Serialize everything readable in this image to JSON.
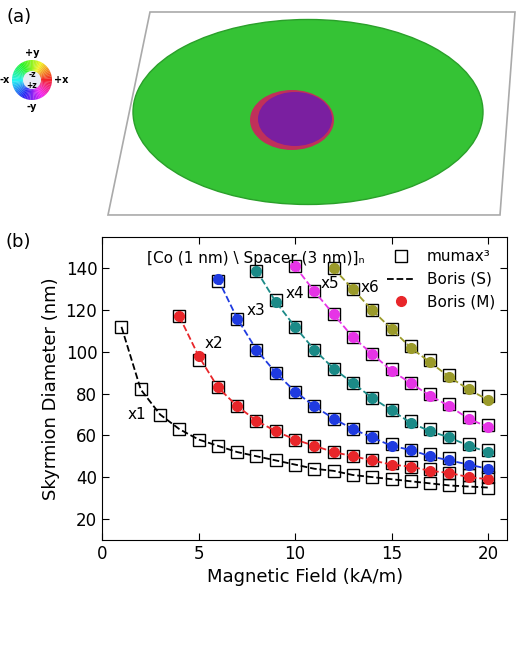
{
  "panel_a": {
    "label": "(a)",
    "color_wheel": {
      "top": "+y",
      "left": "-x",
      "right": "+x",
      "bottom": "-y",
      "center_top": "-z",
      "center_bottom": "+z"
    }
  },
  "chart_data": {
    "type": "scatter",
    "panel_label": "(b)",
    "title": "[Co (1 nm) \\ Spacer (3 nm)]ₙ",
    "x_label": "Magnetic Field (kA/m)",
    "y_label": "Skyrmion Diameter (nm)",
    "xlim": [
      0,
      21
    ],
    "xticks": [
      0,
      5,
      10,
      15,
      20
    ],
    "ylim": [
      10,
      155
    ],
    "yticks": [
      20,
      40,
      60,
      80,
      100,
      120,
      140
    ],
    "legend": "upper right",
    "annotations": [
      {
        "text": "x1",
        "color": "#000000"
      },
      {
        "text": "x2",
        "color": "#e8262a"
      },
      {
        "text": "x3",
        "color": "#1f3be0"
      },
      {
        "text": "x4",
        "color": "#1b8a87"
      },
      {
        "text": "x5",
        "color": "#e634e6"
      },
      {
        "text": "x6",
        "color": "#9a9a2a"
      }
    ],
    "series": [
      {
        "name": "mumax³",
        "color": "#000000",
        "marker": "square",
        "line_style": "none",
        "x": [
          1,
          2,
          3,
          4,
          5,
          6,
          7,
          8,
          9,
          10,
          11,
          12,
          13,
          14,
          15,
          16,
          17,
          18,
          19,
          20
        ],
        "values": [
          112,
          82,
          70,
          63,
          58,
          55,
          52,
          50,
          48,
          46,
          44,
          43,
          41,
          40,
          39,
          38,
          37,
          36,
          35.5,
          35
        ]
      },
      {
        "name": "Boris (S)",
        "color": "#000000",
        "marker": "none",
        "line_style": "dashed",
        "x": [
          1,
          2,
          3,
          4,
          5,
          6,
          7,
          8,
          9,
          10,
          11,
          12,
          13,
          14,
          15,
          16,
          17,
          18,
          19,
          20
        ],
        "values": [
          112,
          82,
          70,
          63,
          58,
          55,
          52,
          50,
          48,
          46,
          44,
          43,
          41,
          40,
          39,
          38,
          37,
          36,
          35.5,
          35
        ]
      },
      {
        "name": "mumax³",
        "color": "#000000",
        "marker": "square",
        "line_style": "none",
        "x": [
          4,
          5,
          6,
          7,
          8,
          9,
          10,
          11,
          12,
          13,
          14,
          15,
          16,
          17,
          18,
          19,
          20
        ],
        "values": [
          117,
          96,
          83,
          74,
          67,
          62,
          58,
          55,
          52,
          50,
          48,
          47,
          45,
          44,
          42,
          41,
          40
        ]
      },
      {
        "name": "Boris (M)",
        "color": "#e8262a",
        "marker": "circle",
        "line_style": "dashed",
        "x": [
          4,
          5,
          6,
          7,
          8,
          9,
          10,
          11,
          12,
          13,
          14,
          15,
          16,
          17,
          18,
          19,
          20
        ],
        "values": [
          117,
          98,
          83,
          74,
          67,
          62,
          58,
          55,
          52,
          50,
          48,
          46,
          45,
          43,
          42,
          40,
          39
        ]
      },
      {
        "name": "mumax³",
        "color": "#000000",
        "marker": "square",
        "line_style": "none",
        "x": [
          6,
          7,
          8,
          9,
          10,
          11,
          12,
          13,
          14,
          15,
          16,
          17,
          18,
          19,
          20
        ],
        "values": [
          134,
          116,
          101,
          90,
          81,
          74,
          68,
          63,
          59,
          56,
          53,
          51,
          49,
          47,
          45
        ]
      },
      {
        "name": "Boris (M)",
        "color": "#1f3be0",
        "marker": "circle",
        "line_style": "dashed",
        "x": [
          6,
          7,
          8,
          9,
          10,
          11,
          12,
          13,
          14,
          15,
          16,
          17,
          18,
          19,
          20
        ],
        "values": [
          135,
          116,
          101,
          90,
          81,
          74,
          68,
          63,
          59,
          55,
          53,
          50,
          48,
          46,
          44
        ]
      },
      {
        "name": "mumax³",
        "color": "#000000",
        "marker": "square",
        "line_style": "none",
        "x": [
          8,
          9,
          10,
          11,
          12,
          13,
          14,
          15,
          16,
          17,
          18,
          19,
          20
        ],
        "values": [
          139,
          125,
          112,
          101,
          92,
          85,
          78,
          72,
          67,
          63,
          59,
          56,
          53
        ]
      },
      {
        "name": "Boris (M)",
        "color": "#1b8a87",
        "marker": "circle",
        "line_style": "dashed",
        "x": [
          8,
          9,
          10,
          11,
          12,
          13,
          14,
          15,
          16,
          17,
          18,
          19,
          20
        ],
        "values": [
          139,
          124,
          112,
          101,
          92,
          85,
          78,
          72,
          66,
          62,
          59,
          55,
          52
        ]
      },
      {
        "name": "mumax³",
        "color": "#000000",
        "marker": "square",
        "line_style": "none",
        "x": [
          10,
          11,
          12,
          13,
          14,
          15,
          16,
          17,
          18,
          19,
          20
        ],
        "values": [
          141,
          129,
          118,
          107,
          99,
          92,
          85,
          80,
          75,
          69,
          65
        ]
      },
      {
        "name": "Boris (M)",
        "color": "#e634e6",
        "marker": "circle",
        "line_style": "dashed",
        "x": [
          10,
          11,
          12,
          13,
          14,
          15,
          16,
          17,
          18,
          19,
          20
        ],
        "values": [
          141,
          129,
          118,
          107,
          99,
          91,
          85,
          79,
          74,
          68,
          64
        ]
      },
      {
        "name": "mumax³",
        "color": "#000000",
        "marker": "square",
        "line_style": "none",
        "x": [
          12,
          13,
          14,
          15,
          16,
          17,
          18,
          19,
          20
        ],
        "values": [
          140,
          130,
          120,
          111,
          103,
          96,
          89,
          83,
          79
        ]
      },
      {
        "name": "Boris (M)",
        "color": "#9a9a2a",
        "marker": "circle",
        "line_style": "dashed",
        "x": [
          12,
          13,
          14,
          15,
          16,
          17,
          18,
          19,
          20
        ],
        "values": [
          140,
          130,
          120,
          111,
          102,
          95,
          88,
          82,
          77
        ]
      }
    ]
  }
}
